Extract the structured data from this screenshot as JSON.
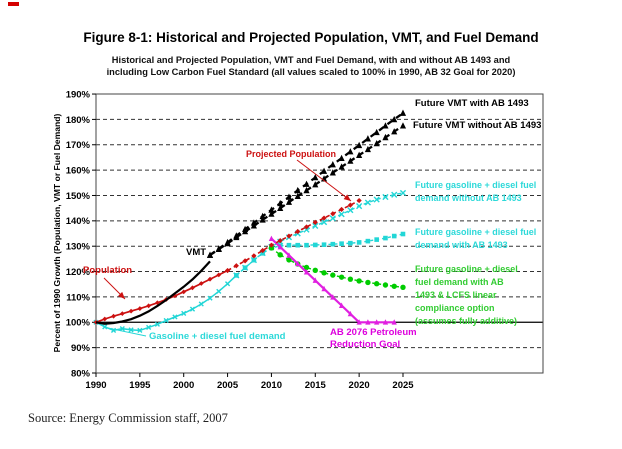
{
  "figure": {
    "title": "Figure 8-1: Historical and Projected Population, VMT, and Fuel Demand",
    "subtitle_line1": "Historical and Projected Population, VMT and Fuel Demand, with and without AB 1493 and",
    "subtitle_line2": "including Low Carbon Fuel Standard (all values scaled to 100% in 1990, AB 32 Goal for 2020)",
    "source": "Source: Energy Commission staff, 2007"
  },
  "chart_data": {
    "type": "line",
    "title": "Historical and Projected Population, VMT and Fuel Demand, with and without AB 1493 and including Low Carbon Fuel Standard (all values scaled to 100% in 1990, AB 32 Goal for 2020)",
    "xlabel": "",
    "ylabel": "Percent of 1990 Growth (Population, VMT or Fuel Demand)",
    "ylim": [
      80,
      190
    ],
    "xlim": [
      1990,
      2025
    ],
    "y_ticks": [
      190,
      180,
      170,
      160,
      150,
      140,
      130,
      120,
      110,
      100,
      90,
      80
    ],
    "y_tick_suffix": "%",
    "x_ticks": [
      1990,
      1995,
      2000,
      2005,
      2010,
      2015,
      2020,
      2025
    ],
    "grid": "horizontal-dashed, solid reference line at 100%",
    "legend_position": "labels placed beside lines inside plot",
    "series": [
      {
        "name": "Gasoline + diesel fuel demand (historical)",
        "color": "#22d6d6",
        "line": "solid",
        "width": 1.5,
        "dash": "",
        "marker": "x",
        "marker_size": 2.1,
        "x_start": 1990,
        "values": [
          100,
          98.2,
          96.8,
          97.5,
          97.0,
          96.8,
          98.0,
          99.2,
          100.7,
          102.1,
          103.5,
          105.2,
          107.2,
          109.5,
          112.2,
          115.2,
          118.5
        ]
      },
      {
        "name": "Future gasoline + diesel fuel demand with AB 1493",
        "color": "#22d6d6",
        "line": "dashed",
        "width": 1.4,
        "dash": "3,3",
        "marker": "square",
        "marker_size": 2.3,
        "x_start": 2006,
        "values": [
          118.5,
          121.5,
          124.5,
          127.2,
          129.3,
          130.2,
          130.4,
          130.4,
          130.4,
          130.5,
          130.6,
          130.8,
          131.0,
          131.2,
          131.5,
          132.0,
          132.6,
          133.2,
          134.0,
          134.8
        ]
      },
      {
        "name": "Future gasoline + diesel fuel demand without AB 1493",
        "color": "#22d6d6",
        "line": "dashed",
        "width": 1.4,
        "dash": "4,3",
        "marker": "x",
        "marker_size": 2.6,
        "x_start": 2006,
        "values": [
          118.5,
          121.5,
          124.5,
          127.3,
          129.8,
          131.8,
          133.5,
          135.0,
          136.5,
          138.0,
          139.5,
          141.0,
          142.6,
          144.2,
          145.8,
          147.2,
          148.4,
          149.4,
          150.3,
          151.0
        ]
      },
      {
        "name": "Future gasoline + diesel fuel demand with AB 1493 & LCFS linear compliance option (assumes fully additive)",
        "color": "#00cc00",
        "line": "dashed",
        "width": 1.4,
        "dash": "3,3",
        "marker": "circle",
        "marker_size": 2.7,
        "x_start": 2010,
        "values": [
          129.3,
          126.6,
          124.6,
          123.0,
          121.6,
          120.5,
          119.5,
          118.6,
          117.8,
          117.0,
          116.3,
          115.7,
          115.2,
          114.7,
          114.2,
          113.8
        ]
      },
      {
        "name": "AB 2076 Petroleum Reduction Goal",
        "color": "#e020e0",
        "line": "solid",
        "width": 2.2,
        "dash": "",
        "marker": "triangle",
        "marker_size": 2.4,
        "x_start": 2010,
        "values": [
          133.0,
          129.7,
          126.4,
          123.1,
          119.8,
          116.5,
          113.2,
          109.9,
          106.6,
          103.3,
          100.0,
          100.0,
          100.0,
          100.0,
          100.0
        ]
      },
      {
        "name": "Population (historical)",
        "color": "#cc1111",
        "line": "solid",
        "width": 1.7,
        "dash": "",
        "marker": "diamond",
        "marker_size": 2.4,
        "x_start": 1990,
        "values": [
          100,
          101.3,
          102.4,
          103.4,
          104.4,
          105.4,
          106.5,
          107.7,
          109.0,
          110.4,
          112.0,
          113.6,
          115.3,
          117.0,
          118.7,
          120.4
        ]
      },
      {
        "name": "Projected Population",
        "color": "#cc1111",
        "line": "dashed",
        "width": 1.6,
        "dash": "4,3",
        "marker": "diamond",
        "marker_size": 2.6,
        "x_start": 2005,
        "values": [
          120.4,
          122.3,
          124.2,
          126.2,
          128.3,
          130.4,
          132.2,
          134.0,
          135.8,
          137.6,
          139.4,
          141.1,
          142.8,
          144.5,
          146.2,
          148.0
        ]
      },
      {
        "name": "VMT (historical)",
        "color": "#000000",
        "line": "solid",
        "width": 2.2,
        "dash": "",
        "marker": "none",
        "marker_size": 0,
        "x_start": 1990,
        "values": [
          100,
          99.4,
          99.7,
          100.3,
          101.2,
          102.6,
          104.3,
          106.4,
          108.8,
          111.4,
          114.0,
          116.9,
          120.3,
          124.0
        ]
      },
      {
        "name": "Future VMT without AB 1493",
        "color": "#000000",
        "line": "dashed",
        "width": 2.3,
        "dash": "6,4.5",
        "marker": "triangle",
        "marker_size": 2.8,
        "x_start": 2003,
        "values": [
          126.5,
          128.8,
          131.1,
          133.5,
          135.8,
          138.1,
          140.4,
          142.7,
          145.0,
          147.4,
          149.7,
          152.0,
          154.3,
          156.6,
          159.0,
          161.3,
          163.6,
          165.9,
          168.2,
          170.5,
          172.9,
          175.2,
          177.5
        ]
      },
      {
        "name": "Future VMT with AB 1493",
        "color": "#000000",
        "line": "dashed",
        "width": 2.3,
        "dash": "6,4.5",
        "marker": "triangle",
        "marker_size": 2.8,
        "x_start": 2003,
        "values": [
          126.5,
          129.0,
          131.5,
          134.1,
          136.7,
          139.2,
          141.8,
          144.3,
          146.9,
          149.4,
          152.0,
          154.5,
          157.1,
          159.6,
          162.2,
          164.7,
          167.3,
          169.8,
          172.4,
          174.9,
          177.5,
          180.0,
          182.5
        ]
      }
    ],
    "annotations": {
      "projected_population": {
        "text": "Projected Population",
        "color": "#cc1111"
      },
      "vmt": {
        "text": "VMT",
        "color": "#000000"
      },
      "population": {
        "text": "Population",
        "color": "#cc1111"
      },
      "gasoline": {
        "text": "Gasoline + diesel fuel demand",
        "color": "#2dd9d9"
      },
      "ab2076": {
        "text": "AB 2076 Petroleum\nReduction Goal",
        "color": "#dd00dd"
      },
      "future_vmt_with": {
        "text": "Future VMT with AB 1493",
        "color": "#000000"
      },
      "future_vmt_without": {
        "text": "Future VMT without AB 1493",
        "color": "#000000"
      },
      "future_gas_without": {
        "text": "Future gasoline + diesel fuel\ndemand without AB 1493",
        "color": "#2dd9d9"
      },
      "future_gas_with": {
        "text": "Future gasoline + diesel fuel\ndemand with AB 1493",
        "color": "#2dd9d9"
      },
      "future_gas_lcfs": {
        "text": "Future gasoline + diesel\nfuel demand with AB\n1493 & LCFS linear\ncompliance option\n(assumes fully additive)",
        "color": "#33cc33"
      }
    }
  }
}
